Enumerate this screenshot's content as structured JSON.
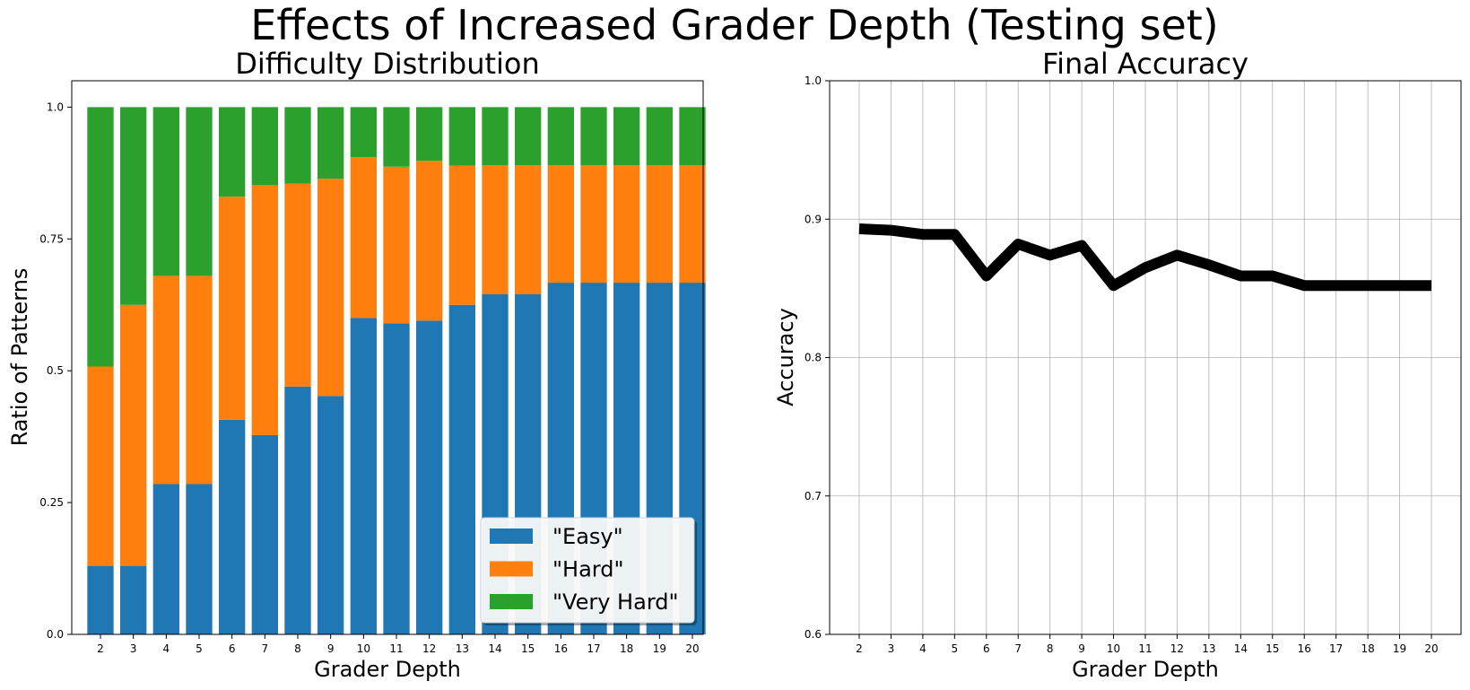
{
  "figure": {
    "title": "Effects of Increased Grader Depth (Testing set)"
  },
  "chart_data": [
    {
      "type": "bar",
      "stacked": true,
      "title": "Difficulty Distribution",
      "xlabel": "Grader Depth",
      "ylabel": "Ratio of Patterns",
      "ylim": [
        0,
        1.05
      ],
      "yticks": [
        0.0,
        0.25,
        0.5,
        0.75,
        1.0
      ],
      "ytick_labels": [
        "0.0",
        "0.25",
        "0.5",
        "0.75",
        "1.0"
      ],
      "categories": [
        "2",
        "3",
        "4",
        "5",
        "6",
        "7",
        "8",
        "9",
        "10",
        "11",
        "12",
        "13",
        "14",
        "15",
        "16",
        "17",
        "18",
        "19",
        "20"
      ],
      "series": [
        {
          "name": "\"Easy\"",
          "color": "#1f77b4",
          "values": [
            0.13,
            0.13,
            0.285,
            0.285,
            0.407,
            0.378,
            0.47,
            0.452,
            0.6,
            0.59,
            0.595,
            0.625,
            0.645,
            0.645,
            0.667,
            0.667,
            0.667,
            0.667,
            0.667
          ]
        },
        {
          "name": "\"Hard\"",
          "color": "#ff7f0e",
          "values": [
            0.378,
            0.495,
            0.395,
            0.395,
            0.423,
            0.474,
            0.385,
            0.412,
            0.305,
            0.297,
            0.303,
            0.264,
            0.245,
            0.245,
            0.223,
            0.223,
            0.223,
            0.223,
            0.223
          ]
        },
        {
          "name": "\"Very Hard\"",
          "color": "#2ca02c",
          "values": [
            0.492,
            0.375,
            0.32,
            0.32,
            0.17,
            0.148,
            0.145,
            0.136,
            0.095,
            0.113,
            0.102,
            0.111,
            0.11,
            0.11,
            0.11,
            0.11,
            0.11,
            0.11,
            0.11
          ]
        }
      ],
      "grid": false,
      "legend": "lower-right"
    },
    {
      "type": "line",
      "title": "Final Accuracy",
      "xlabel": "Grader Depth",
      "ylabel": "Accuracy",
      "ylim": [
        0.6,
        1.0
      ],
      "yticks": [
        0.6,
        0.7,
        0.8,
        0.9,
        1.0
      ],
      "ytick_labels": [
        "0.6",
        "0.7",
        "0.8",
        "0.9",
        "1.0"
      ],
      "x": [
        2,
        3,
        4,
        5,
        6,
        7,
        8,
        9,
        10,
        11,
        12,
        13,
        14,
        15,
        16,
        17,
        18,
        19,
        20
      ],
      "series": [
        {
          "color": "#000000",
          "values": [
            0.893,
            0.892,
            0.889,
            0.889,
            0.859,
            0.882,
            0.874,
            0.881,
            0.852,
            0.865,
            0.874,
            0.867,
            0.859,
            0.859,
            0.852,
            0.852,
            0.852,
            0.852,
            0.852
          ]
        }
      ],
      "grid": true
    }
  ]
}
